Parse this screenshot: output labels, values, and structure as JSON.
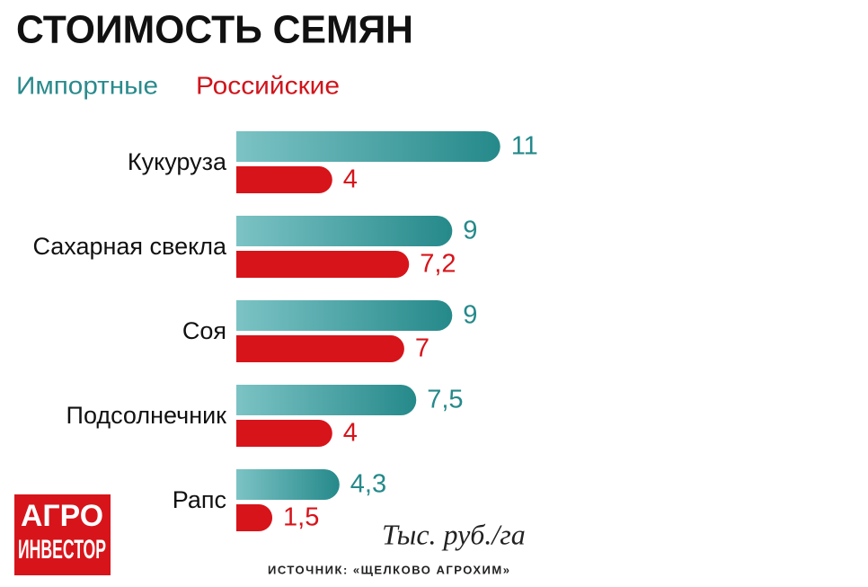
{
  "chart_data": {
    "type": "bar",
    "orientation": "horizontal",
    "title": "СТОИМОСТЬ СЕМЯН",
    "categories": [
      "Кукуруза",
      "Сахарная свекла",
      "Соя",
      "Подсолнечник",
      "Рапс"
    ],
    "series": [
      {
        "name": "Импортные",
        "color": "#25898a",
        "values": [
          11,
          9,
          9,
          7.5,
          4.3
        ],
        "value_labels": [
          "11",
          "9",
          "9",
          "7,5",
          "4,3"
        ]
      },
      {
        "name": "Российские",
        "color": "#d7141a",
        "values": [
          4,
          7.2,
          7,
          4,
          1.5
        ],
        "value_labels": [
          "4",
          "7,2",
          "7",
          "4",
          "1,5"
        ]
      }
    ],
    "unit_note": "Тыс. руб./га",
    "source": "ИСТОЧНИК: «ЩЕЛКОВО АГРОХИМ»",
    "logo": [
      "АГРО",
      "ИНВЕСТОР"
    ]
  }
}
